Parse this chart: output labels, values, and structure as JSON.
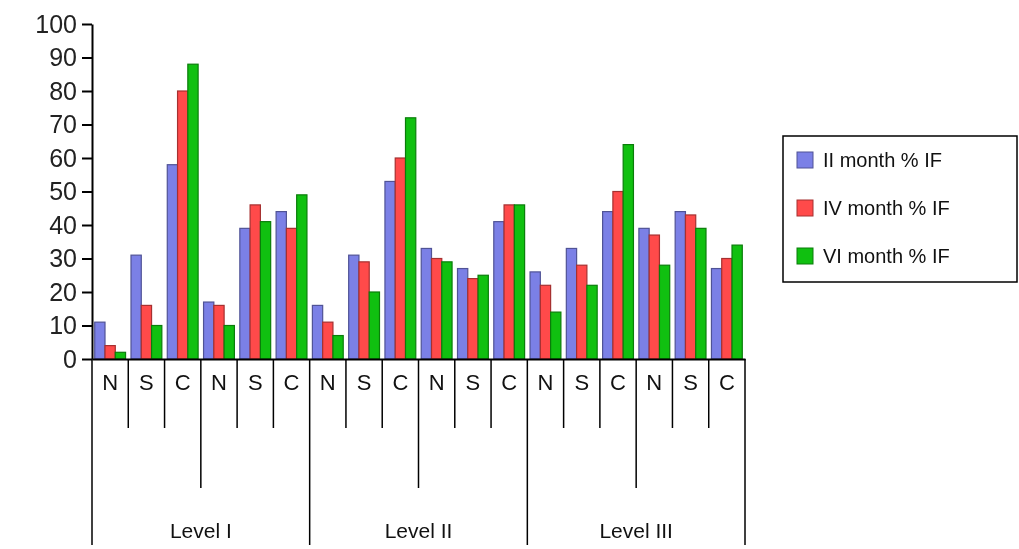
{
  "chart_data": {
    "type": "bar",
    "categories": [
      "N",
      "S",
      "C",
      "N",
      "S",
      "C",
      "N",
      "S",
      "C",
      "N",
      "S",
      "C",
      "N",
      "S",
      "C",
      "N",
      "S",
      "C"
    ],
    "series": [
      {
        "name": "II month % IF",
        "color": "#7b80e6",
        "values": [
          11,
          31,
          58,
          17,
          39,
          44,
          16,
          31,
          53,
          33,
          27,
          41,
          26,
          33,
          44,
          39,
          44,
          27
        ]
      },
      {
        "name": "IV month % IF",
        "color": "#ff4a4a",
        "values": [
          4,
          16,
          80,
          16,
          46,
          39,
          11,
          29,
          60,
          30,
          24,
          46,
          22,
          28,
          50,
          37,
          43,
          30
        ]
      },
      {
        "name": "VI month % IF",
        "color": "#10c010",
        "values": [
          2,
          10,
          88,
          10,
          41,
          49,
          7,
          20,
          72,
          29,
          25,
          46,
          14,
          22,
          64,
          28,
          39,
          34
        ]
      }
    ],
    "annotations": [
      "Level I",
      "Level II",
      "Level III"
    ],
    "ylim": [
      0,
      100
    ],
    "yticks": [
      0,
      10,
      20,
      30,
      40,
      50,
      60,
      70,
      80,
      90,
      100
    ],
    "grid": false,
    "legend": "right"
  }
}
